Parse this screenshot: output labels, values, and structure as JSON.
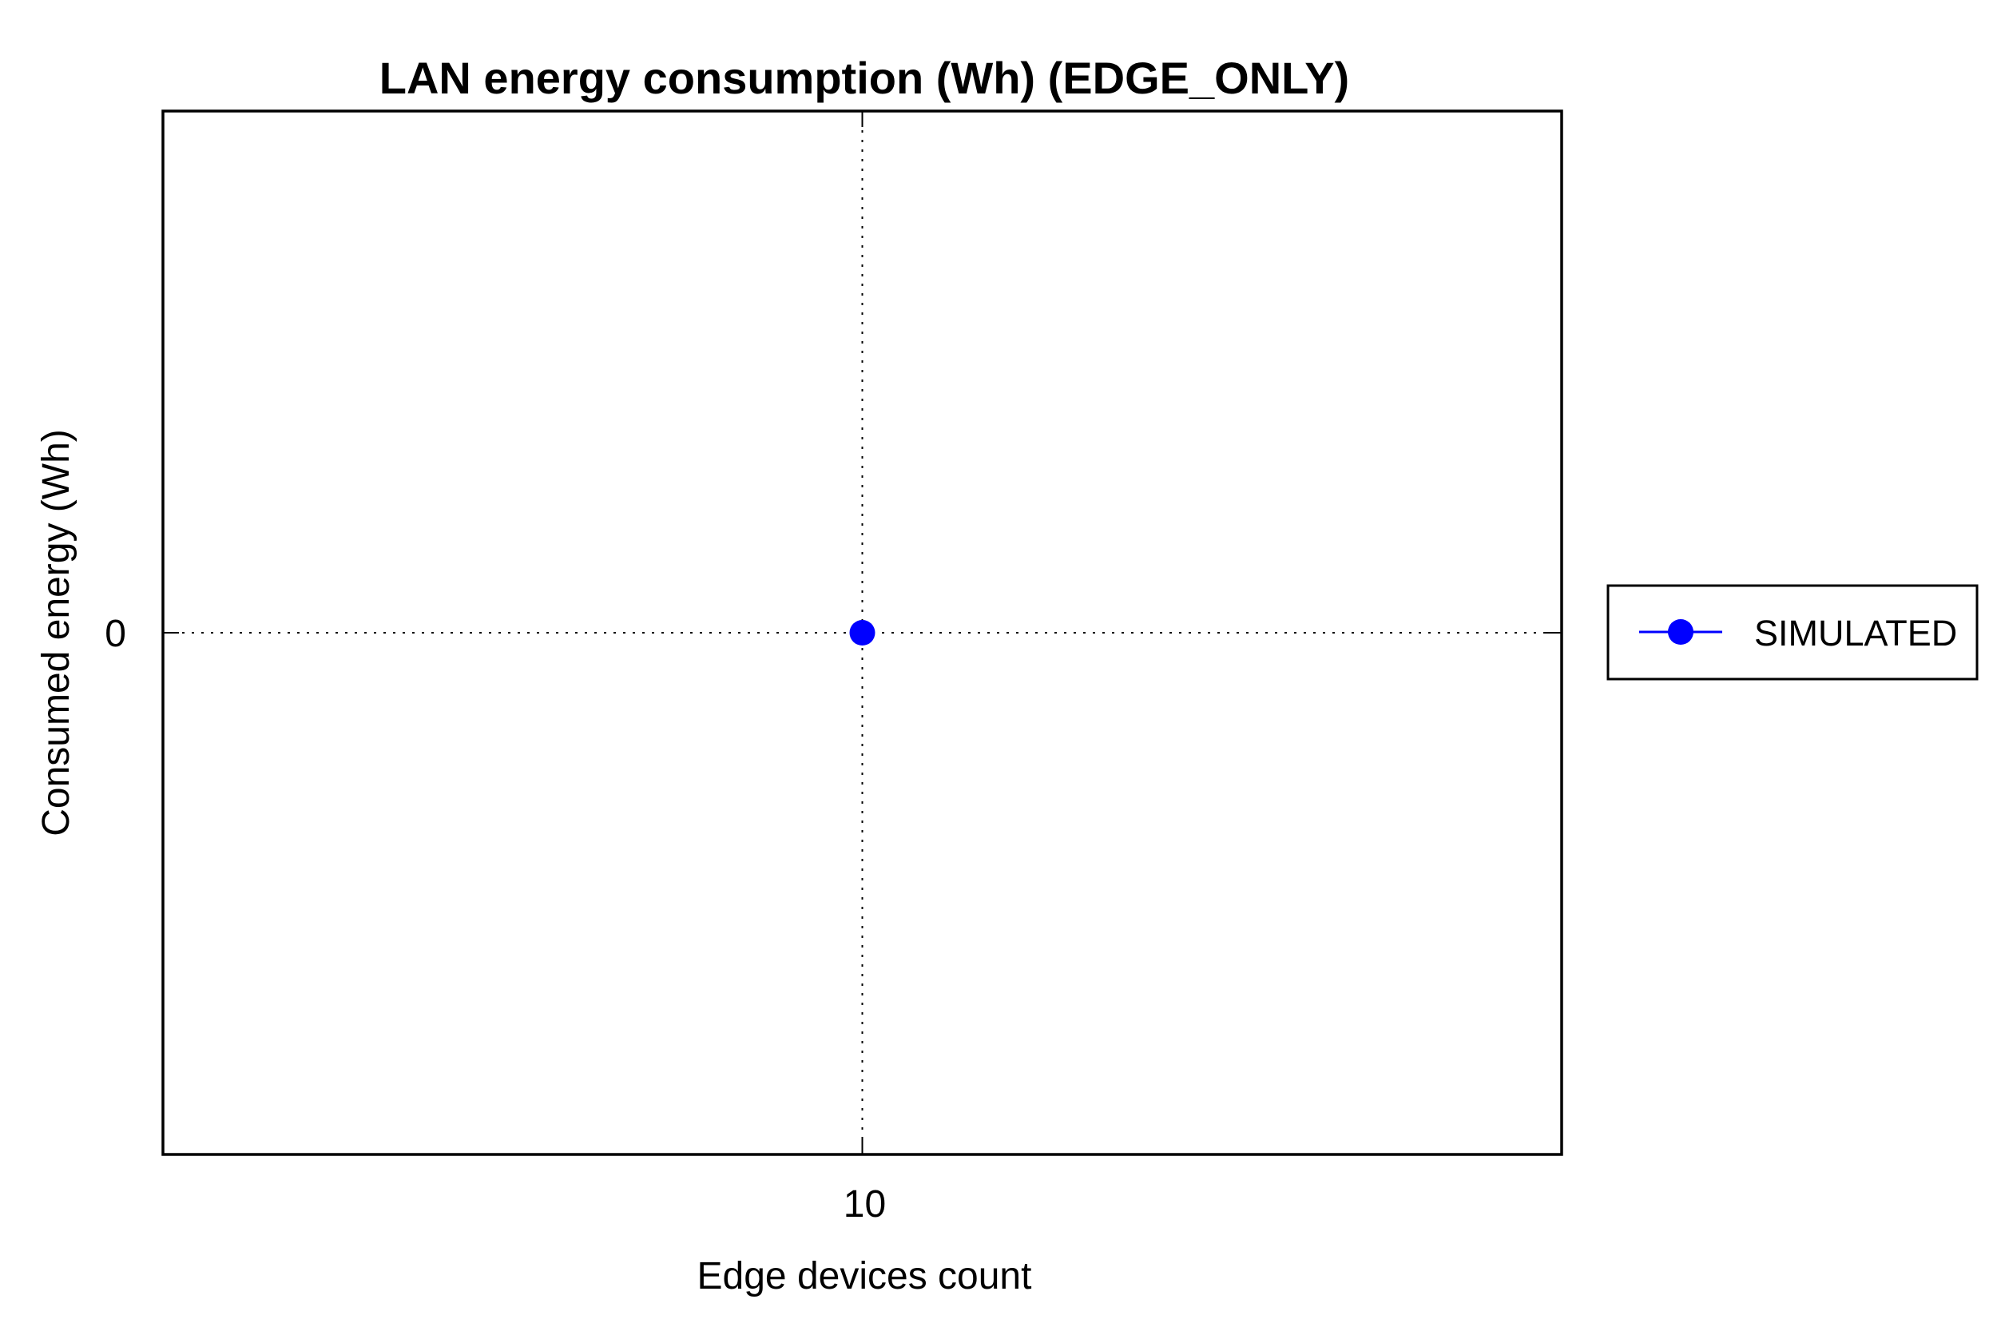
{
  "chart_data": {
    "type": "line",
    "title": "LAN energy consumption (Wh) (EDGE_ONLY)",
    "xlabel": "Edge devices count",
    "ylabel": "Consumed energy (Wh)",
    "x": [
      10
    ],
    "x_ticks": [
      "10"
    ],
    "y_ticks": [
      "0"
    ],
    "xlim": [
      9,
      11
    ],
    "ylim": [
      -1,
      1
    ],
    "grid": true,
    "legend_position": "outside-right",
    "series": [
      {
        "name": "SIMULATED",
        "x": [
          10
        ],
        "values": [
          0
        ],
        "color": "#0000ff",
        "marker": "circle"
      }
    ]
  }
}
